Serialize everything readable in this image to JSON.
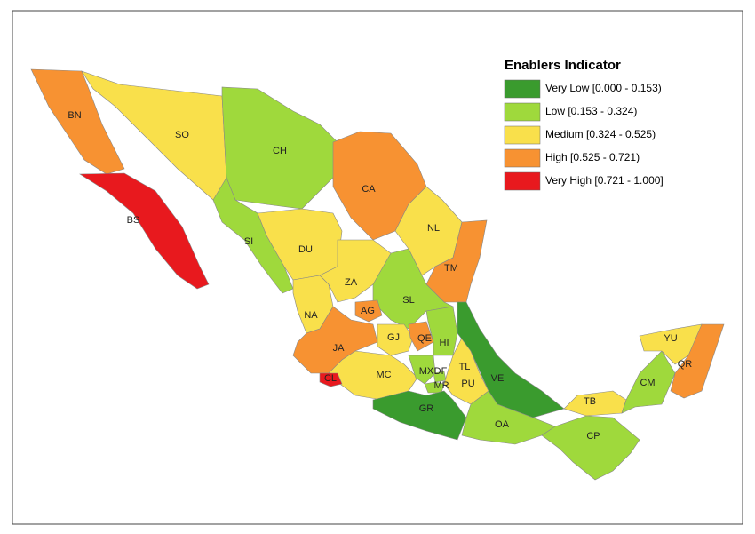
{
  "legend": {
    "title": "Enablers Indicator",
    "items": [
      {
        "label": "Very Low [0.000 - 0.153)",
        "color": "#3a9b2e"
      },
      {
        "label": "Low [0.153 - 0.324)",
        "color": "#9fd93c"
      },
      {
        "label": "Medium [0.324 - 0.525)",
        "color": "#f9e04b"
      },
      {
        "label": "High [0.525 - 0.721)",
        "color": "#f79232"
      },
      {
        "label": "Very High [0.721 - 1.000]",
        "color": "#e8191e"
      }
    ]
  },
  "states": [
    {
      "label": "BN",
      "color": "#f79232"
    },
    {
      "label": "BS",
      "color": "#e8191e"
    },
    {
      "label": "SO",
      "color": "#f9e04b"
    },
    {
      "label": "CH",
      "color": "#9fd93c"
    },
    {
      "label": "CA",
      "color": "#f79232"
    },
    {
      "label": "NL",
      "color": "#f9e04b"
    },
    {
      "label": "TM",
      "color": "#f79232"
    },
    {
      "label": "SI",
      "color": "#9fd93c"
    },
    {
      "label": "DU",
      "color": "#f9e04b"
    },
    {
      "label": "ZA",
      "color": "#f9e04b"
    },
    {
      "label": "SL",
      "color": "#9fd93c"
    },
    {
      "label": "NA",
      "color": "#f9e04b"
    },
    {
      "label": "AG",
      "color": "#f79232"
    },
    {
      "label": "JA",
      "color": "#f79232"
    },
    {
      "label": "GJ",
      "color": "#f9e04b"
    },
    {
      "label": "QE",
      "color": "#f79232"
    },
    {
      "label": "HI",
      "color": "#9fd93c"
    },
    {
      "label": "MC",
      "color": "#f9e04b"
    },
    {
      "label": "MX",
      "color": "#9fd93c"
    },
    {
      "label": "DF",
      "color": "#9fd93c"
    },
    {
      "label": "MR",
      "color": "#9fd93c"
    },
    {
      "label": "TL",
      "color": "#f79232"
    },
    {
      "label": "PU",
      "color": "#f9e04b"
    },
    {
      "label": "VE",
      "color": "#3a9b2e"
    },
    {
      "label": "CL",
      "color": "#e8191e"
    },
    {
      "label": "GR",
      "color": "#3a9b2e"
    },
    {
      "label": "OA",
      "color": "#9fd93c"
    },
    {
      "label": "TB",
      "color": "#f9e04b"
    },
    {
      "label": "CP",
      "color": "#9fd93c"
    },
    {
      "label": "CM",
      "color": "#9fd93c"
    },
    {
      "label": "YU",
      "color": "#f9e04b"
    },
    {
      "label": "QR",
      "color": "#f79232"
    }
  ]
}
